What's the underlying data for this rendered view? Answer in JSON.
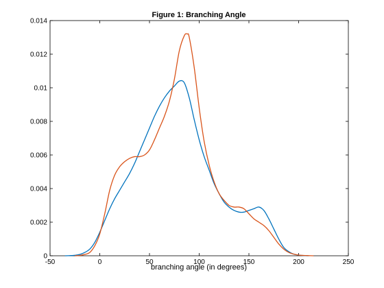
{
  "chart_data": {
    "type": "line",
    "title": "Figure 1: Branching Angle",
    "xlabel": "branching angle (in degrees)",
    "ylabel": "",
    "xlim": [
      -50,
      250
    ],
    "ylim": [
      0,
      0.014
    ],
    "x_ticks": [
      -50,
      0,
      50,
      100,
      150,
      200,
      250
    ],
    "x_tick_labels": [
      "-50",
      "0",
      "50",
      "100",
      "150",
      "200",
      "250"
    ],
    "y_ticks": [
      0,
      0.002,
      0.004,
      0.006,
      0.008,
      0.01,
      0.012,
      0.014
    ],
    "y_tick_labels": [
      "0",
      "0.002",
      "0.004",
      "0.006",
      "0.008",
      "0.01",
      "0.012",
      "0.014"
    ],
    "grid": false,
    "legend": "none",
    "series": [
      {
        "color": "#0072BD",
        "x": [
          -35,
          -30,
          -25,
          -20,
          -15,
          -10,
          -5,
          0,
          5,
          10,
          15,
          20,
          25,
          30,
          35,
          40,
          45,
          50,
          55,
          60,
          65,
          70,
          75,
          80,
          85,
          90,
          95,
          100,
          105,
          110,
          115,
          120,
          125,
          130,
          135,
          140,
          145,
          150,
          155,
          160,
          165,
          170,
          175,
          180,
          185,
          190,
          195,
          200,
          205,
          210
        ],
        "y": [
          0,
          1e-05,
          3e-05,
          8e-05,
          0.0002,
          0.0004,
          0.0008,
          0.0014,
          0.0021,
          0.0028,
          0.0034,
          0.0039,
          0.0044,
          0.0049,
          0.0055,
          0.0062,
          0.0069,
          0.0076,
          0.0083,
          0.0089,
          0.0094,
          0.0098,
          0.0101,
          0.0104,
          0.0103,
          0.0094,
          0.0081,
          0.0069,
          0.0059,
          0.0051,
          0.0043,
          0.0037,
          0.0032,
          0.0029,
          0.0027,
          0.0026,
          0.0026,
          0.0027,
          0.0028,
          0.0029,
          0.0027,
          0.0022,
          0.0016,
          0.001,
          0.0005,
          0.00025,
          0.0001,
          4e-05,
          1e-05,
          0
        ]
      },
      {
        "color": "#D95319",
        "x": [
          -25,
          -20,
          -15,
          -10,
          -5,
          0,
          5,
          10,
          15,
          20,
          25,
          30,
          35,
          40,
          45,
          50,
          55,
          60,
          65,
          70,
          75,
          80,
          85,
          88,
          90,
          95,
          100,
          105,
          110,
          115,
          120,
          125,
          130,
          135,
          140,
          145,
          150,
          155,
          160,
          165,
          170,
          175,
          180,
          185,
          190,
          195,
          200,
          205,
          210,
          215
        ],
        "y": [
          0,
          2e-05,
          8e-05,
          0.0002,
          0.0006,
          0.0013,
          0.0025,
          0.0039,
          0.0048,
          0.0053,
          0.0056,
          0.0058,
          0.0059,
          0.0059,
          0.006,
          0.0063,
          0.0069,
          0.0076,
          0.0083,
          0.0092,
          0.0105,
          0.0122,
          0.0131,
          0.0132,
          0.013,
          0.0112,
          0.0088,
          0.0068,
          0.0054,
          0.0044,
          0.0037,
          0.0033,
          0.003,
          0.0029,
          0.0029,
          0.0028,
          0.0025,
          0.0022,
          0.002,
          0.0018,
          0.0015,
          0.0011,
          0.0007,
          0.0004,
          0.0002,
          0.0001,
          4e-05,
          2e-05,
          1e-05,
          0
        ]
      }
    ]
  }
}
